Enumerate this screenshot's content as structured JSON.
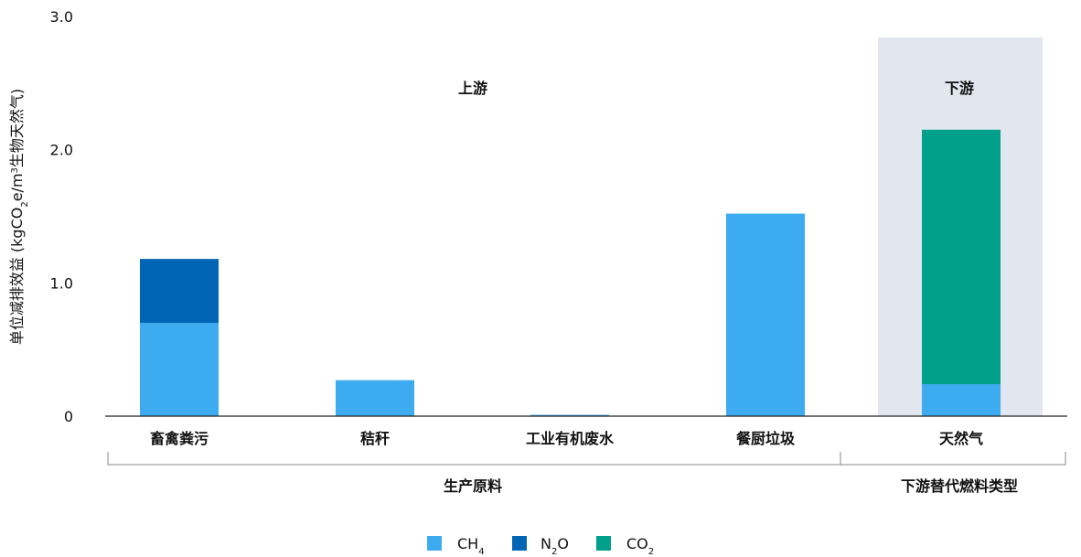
{
  "chart_data": {
    "type": "bar",
    "stacked": true,
    "categories": [
      "畜禽粪污",
      "秸秆",
      "工业有机废水",
      "餐厨垃圾",
      "天然气"
    ],
    "series": [
      {
        "name": "CH4",
        "color": "#3DABEF",
        "values": [
          0.7,
          0.27,
          0.01,
          1.52,
          0.24
        ]
      },
      {
        "name": "N2O",
        "color": "#0165B6",
        "values": [
          0.48,
          0,
          0,
          0,
          0
        ]
      },
      {
        "name": "CO2",
        "color": "#00A08A",
        "values": [
          0,
          0,
          0,
          0,
          1.91
        ]
      }
    ],
    "ylim": [
      0,
      3.0
    ],
    "yticks": [
      {
        "value": 0,
        "label": "0"
      },
      {
        "value": 1.0,
        "label": "1.0"
      },
      {
        "value": 2.0,
        "label": "2.0"
      },
      {
        "value": 3.0,
        "label": "3.0"
      }
    ],
    "ylabel": {
      "part1": "单位减排效益 (kgCO",
      "sub": "2",
      "part2": "e/m",
      "sup": "3",
      "part3": "生物天然气)"
    },
    "region_labels": {
      "upstream": "上游",
      "downstream": "下游"
    },
    "downstream_shade_color": "#E1E6EF",
    "group_labels": {
      "feedstock": "生产原料",
      "fuel_type": "下游替代燃料类型"
    },
    "legend": [
      {
        "base": "CH",
        "sub": "4",
        "after": ""
      },
      {
        "base": "N",
        "sub": "2",
        "after": "O"
      },
      {
        "base": "CO",
        "sub": "2",
        "after": ""
      }
    ],
    "legend_position": "bottom",
    "grid": false
  }
}
